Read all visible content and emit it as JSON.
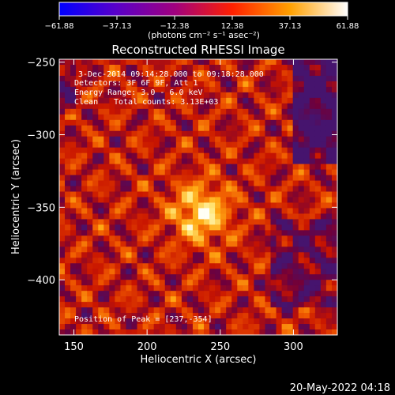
{
  "colorbar": {
    "ticks": [
      "-61.88",
      "-37.13",
      "-12.38",
      "12.38",
      "37.13",
      "61.88"
    ],
    "range": [
      -61.88,
      61.88
    ],
    "units_label": "(photons cm⁻² s⁻¹ asec⁻²)",
    "stops": [
      "#0000ff",
      "#5a00c8",
      "#a0007f",
      "#ff2000",
      "#ffa000",
      "#ffffff"
    ]
  },
  "chart_data": {
    "type": "heatmap",
    "title": "Reconstructed RHESSI Image",
    "xlabel": "Heliocentric X (arcsec)",
    "ylabel": "Heliocentric Y (arcsec)",
    "xlim": [
      140,
      330
    ],
    "ylim": [
      -438,
      -248
    ],
    "x_ticks": [
      150,
      200,
      250,
      300
    ],
    "y_ticks": [
      -250,
      -300,
      -350,
      -400
    ],
    "peak": {
      "x": 237,
      "y": -354
    },
    "annotations": {
      "time": "3-Dec-2014 09:14:28.000 to 09:18:28.000",
      "detectors": "Detectors: 3F 6F 9F, Att 1",
      "energy": "Energy Range: 3.0 - 6.0 keV",
      "method": "Clean",
      "counts": "Total counts: 3.13E+03",
      "peak_label": "Position of Peak = [237,-354]"
    }
  },
  "footer": {
    "date": "20-May-2022 04:18"
  }
}
